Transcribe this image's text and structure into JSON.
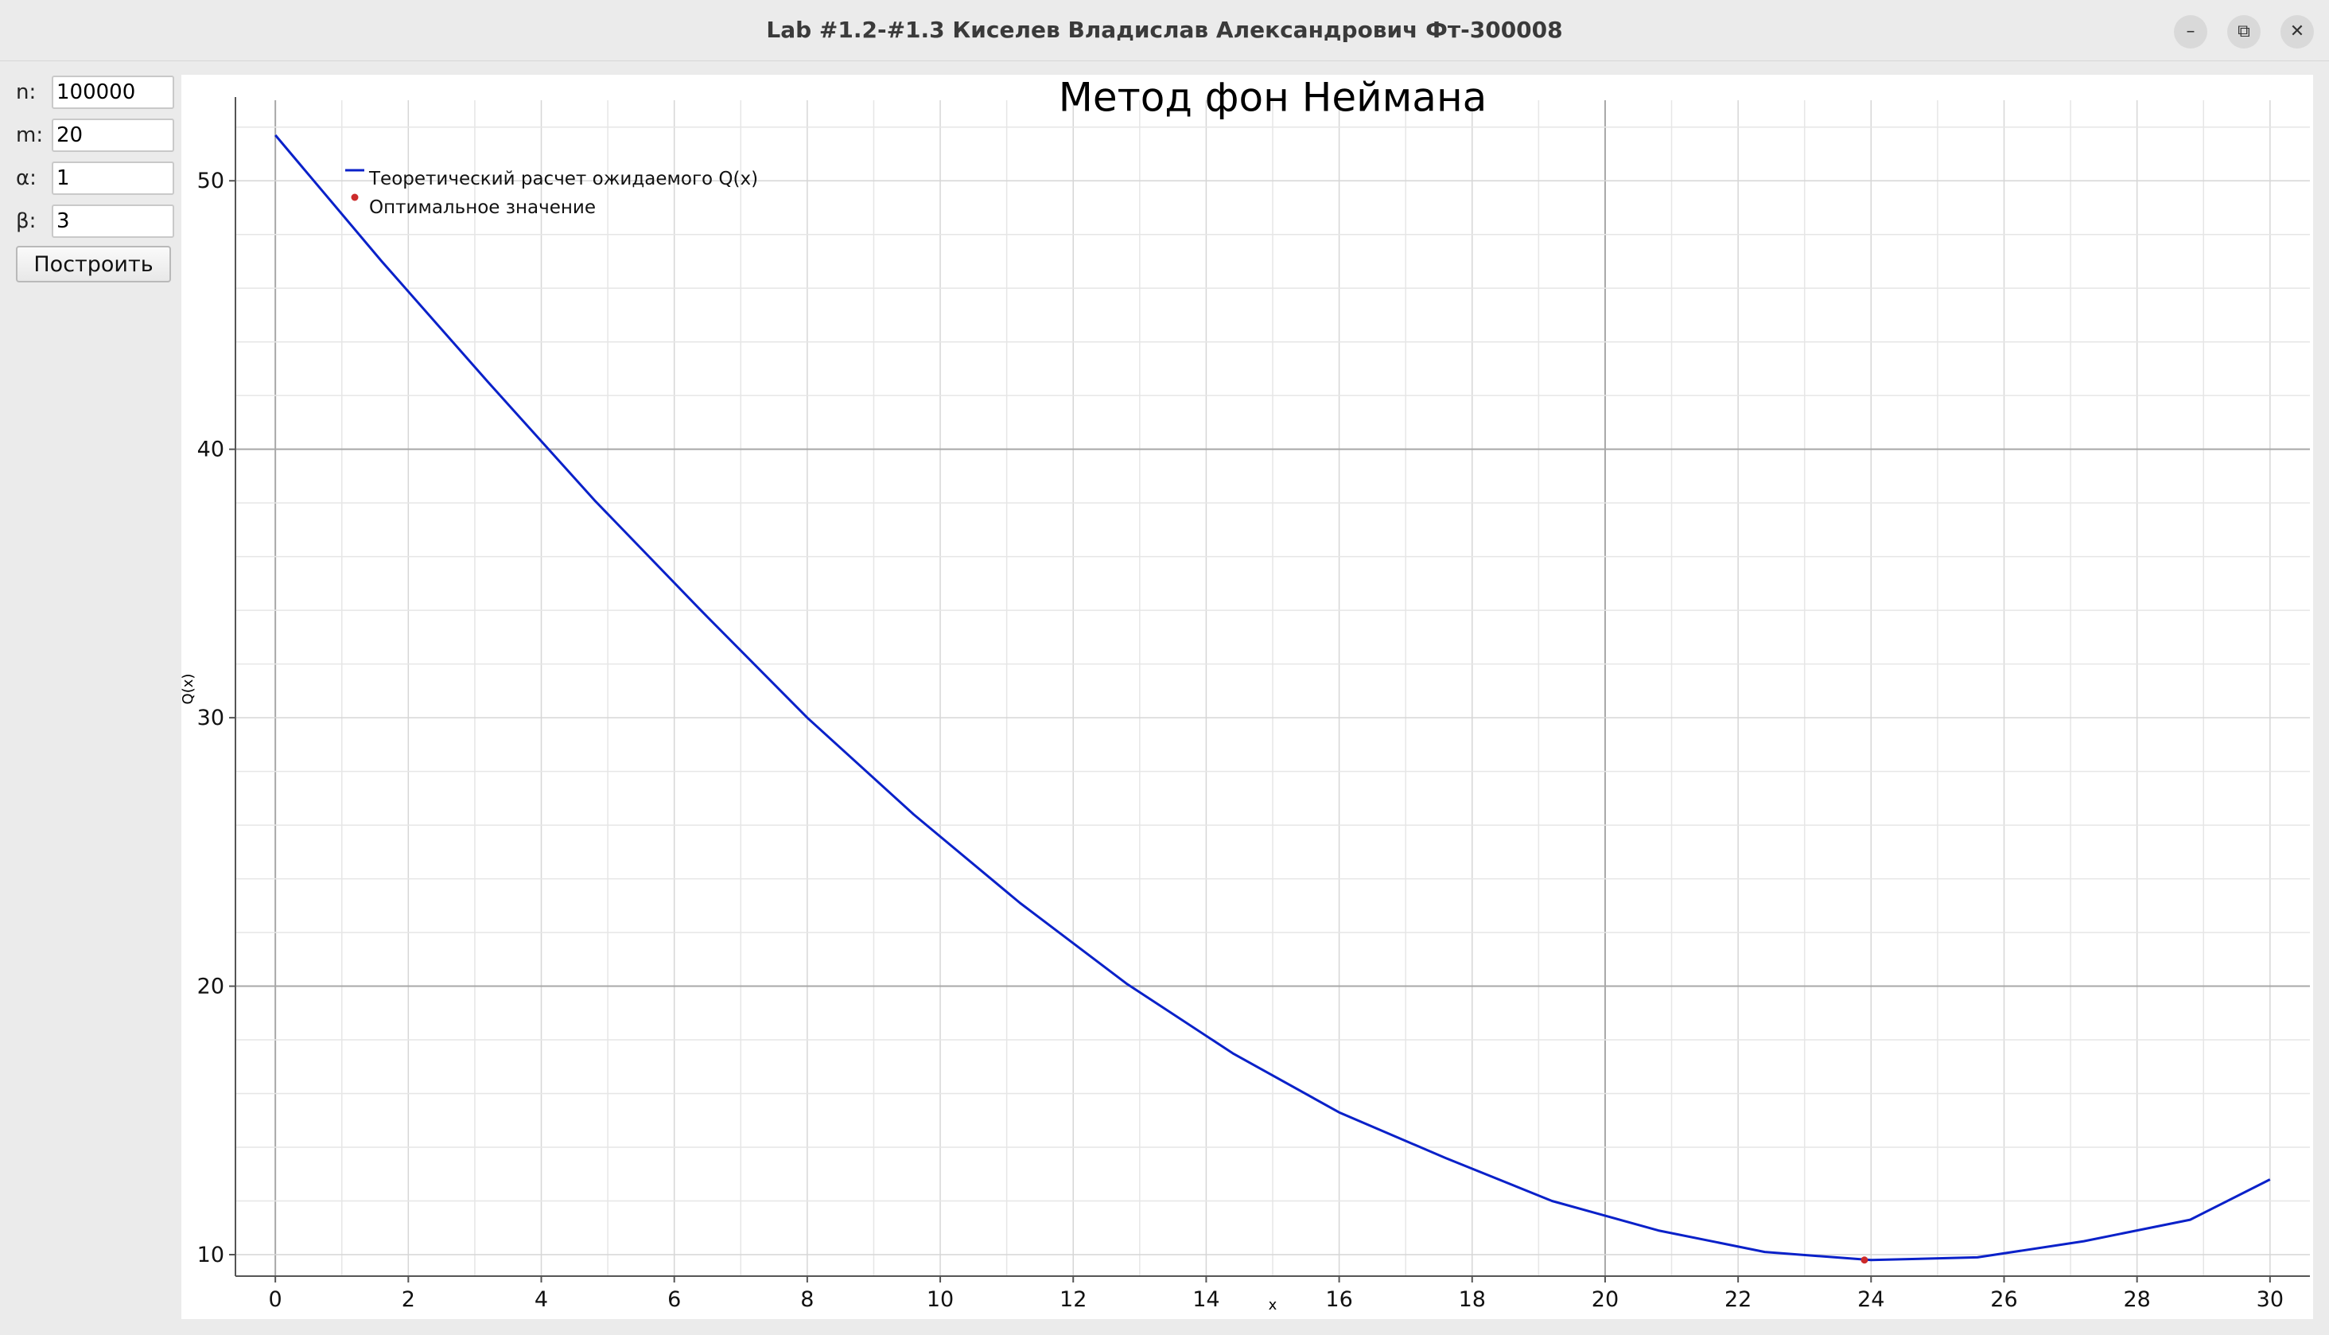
{
  "window": {
    "title": "Lab #1.2-#1.3 Киселев Владислав Александрович Фт-300008",
    "minimize_glyph": "–",
    "maximize_glyph": "⧉",
    "close_glyph": "✕"
  },
  "params": {
    "n_label": "n:",
    "n_value": "100000",
    "m_label": "m:",
    "m_value": "20",
    "alpha_label": "α:",
    "alpha_value": "1",
    "beta_label": "β:",
    "beta_value": "3",
    "build_label": "Построить"
  },
  "chart_data": {
    "type": "line",
    "title": "Метод фон Неймана",
    "xlabel": "x",
    "ylabel": "Q(x)",
    "xlim": [
      -0.6,
      30.6
    ],
    "ylim": [
      9.2,
      53
    ],
    "xticks": [
      0,
      2,
      4,
      6,
      8,
      10,
      12,
      14,
      16,
      18,
      20,
      22,
      24,
      26,
      28,
      30
    ],
    "yticks": [
      10,
      20,
      30,
      40,
      50
    ],
    "grid": true,
    "legend_position": "top-left",
    "series": [
      {
        "name": "Теоретический расчет ожидаемого Q(x)",
        "color": "#0a21c9",
        "x": [
          0,
          1.6,
          3.2,
          4.8,
          6.4,
          8.0,
          9.6,
          11.2,
          12.8,
          14.4,
          16.0,
          17.6,
          19.2,
          20.8,
          22.4,
          24.0,
          25.6,
          27.2,
          28.8,
          30
        ],
        "y": [
          51.7,
          47.0,
          42.5,
          38.1,
          34.0,
          30.0,
          26.4,
          23.1,
          20.1,
          17.5,
          15.3,
          13.6,
          12.0,
          10.9,
          10.1,
          9.8,
          9.9,
          10.5,
          11.3,
          12.8
        ]
      },
      {
        "name": "Оптимальное значение",
        "color": "#cc2b2b",
        "marker": "point",
        "x": [
          23.9
        ],
        "y": [
          9.8
        ]
      }
    ]
  }
}
